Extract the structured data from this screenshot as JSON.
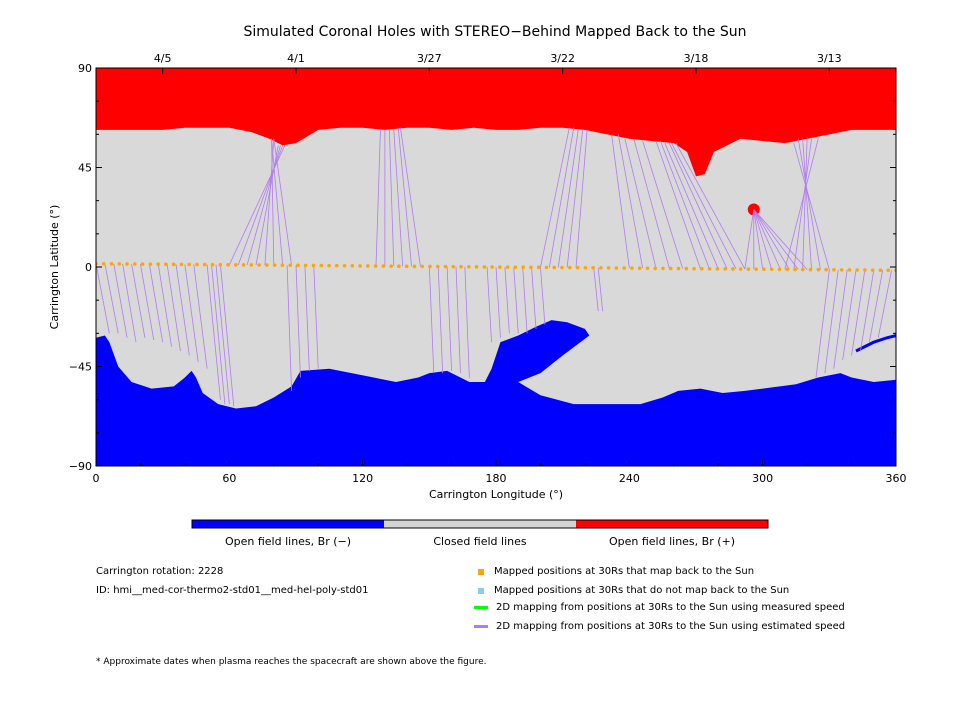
{
  "chart_data": {
    "type": "map",
    "title": "Simulated Coronal Holes with STEREO−Behind Mapped Back to the Sun",
    "xlabel": "Carrington Longitude (°)",
    "ylabel": "Carrington Latitude (°)",
    "xlim": [
      0,
      360
    ],
    "ylim": [
      -90,
      90
    ],
    "x_ticks": [
      0,
      60,
      120,
      180,
      240,
      300,
      360
    ],
    "y_ticks": [
      -90,
      -45,
      0,
      45,
      90
    ],
    "x_tick_labels": [
      "0",
      "60",
      "120",
      "180",
      "240",
      "300",
      "360"
    ],
    "y_tick_labels": [
      "−90",
      "−45",
      "0",
      "45",
      "90"
    ],
    "top_axis_dates": [
      {
        "label": "4/5",
        "lon": 30
      },
      {
        "label": "4/1",
        "lon": 90
      },
      {
        "label": "3/27",
        "lon": 150
      },
      {
        "label": "3/22",
        "lon": 210
      },
      {
        "label": "3/18",
        "lon": 270
      },
      {
        "label": "3/13",
        "lon": 330
      }
    ],
    "north_hole_boundary": [
      [
        0,
        62
      ],
      [
        10,
        62
      ],
      [
        20,
        62
      ],
      [
        30,
        62
      ],
      [
        40,
        63
      ],
      [
        50,
        63
      ],
      [
        60,
        63
      ],
      [
        70,
        61
      ],
      [
        78,
        58
      ],
      [
        84,
        55
      ],
      [
        90,
        56
      ],
      [
        100,
        62
      ],
      [
        110,
        63
      ],
      [
        120,
        63
      ],
      [
        130,
        62
      ],
      [
        140,
        63
      ],
      [
        150,
        63
      ],
      [
        160,
        62
      ],
      [
        170,
        63
      ],
      [
        180,
        62
      ],
      [
        190,
        62
      ],
      [
        200,
        63
      ],
      [
        210,
        63
      ],
      [
        220,
        62
      ],
      [
        230,
        60
      ],
      [
        240,
        58
      ],
      [
        250,
        57
      ],
      [
        260,
        56
      ],
      [
        266,
        52
      ],
      [
        270,
        41
      ],
      [
        274,
        42
      ],
      [
        278,
        52
      ],
      [
        290,
        58
      ],
      [
        300,
        57
      ],
      [
        310,
        56
      ],
      [
        320,
        58
      ],
      [
        330,
        60
      ],
      [
        340,
        62
      ],
      [
        350,
        62
      ],
      [
        360,
        62
      ]
    ],
    "north_small_hole": {
      "lon": 296,
      "lat": 26
    },
    "south_hole_boundary": [
      [
        0,
        -32
      ],
      [
        4,
        -31
      ],
      [
        6,
        -34
      ],
      [
        10,
        -45
      ],
      [
        16,
        -52
      ],
      [
        25,
        -55
      ],
      [
        35,
        -54
      ],
      [
        40,
        -50
      ],
      [
        43,
        -47
      ],
      [
        45,
        -50
      ],
      [
        48,
        -57
      ],
      [
        55,
        -62
      ],
      [
        63,
        -64
      ],
      [
        72,
        -63
      ],
      [
        80,
        -59
      ],
      [
        88,
        -54
      ],
      [
        92,
        -47
      ],
      [
        105,
        -46
      ],
      [
        115,
        -48
      ],
      [
        125,
        -50
      ],
      [
        135,
        -52
      ],
      [
        145,
        -50
      ],
      [
        150,
        -48
      ],
      [
        158,
        -47
      ],
      [
        168,
        -52
      ],
      [
        175,
        -52
      ],
      [
        178,
        -46
      ],
      [
        182,
        -34
      ],
      [
        190,
        -31
      ],
      [
        198,
        -27
      ],
      [
        205,
        -24
      ],
      [
        212,
        -25
      ],
      [
        220,
        -28
      ],
      [
        222,
        -31
      ],
      [
        210,
        -40
      ],
      [
        200,
        -48
      ],
      [
        190,
        -52
      ],
      [
        200,
        -58
      ],
      [
        215,
        -62
      ],
      [
        230,
        -62
      ],
      [
        245,
        -62
      ],
      [
        255,
        -59
      ],
      [
        262,
        -56
      ],
      [
        272,
        -55
      ],
      [
        282,
        -57
      ],
      [
        292,
        -56
      ],
      [
        300,
        -55
      ],
      [
        315,
        -53
      ],
      [
        325,
        -50
      ],
      [
        335,
        -48
      ],
      [
        340,
        -50
      ],
      [
        350,
        -52
      ],
      [
        360,
        -51
      ]
    ],
    "south_small_hole": [
      [
        342,
        -38
      ],
      [
        350,
        -34
      ],
      [
        356,
        -32
      ],
      [
        360,
        -31
      ]
    ],
    "mapped_positions": {
      "lon_start": 0,
      "lon_end": 360,
      "lat_start": 1.5,
      "lat_end": -1.5,
      "count": 104
    },
    "colorbar": {
      "labels": [
        "Open field lines, Br (−)",
        "Closed field lines",
        "Open field lines, Br (+)"
      ],
      "colors": [
        "#0000ff",
        "#d3d3d3",
        "#ff0000"
      ]
    },
    "colors": {
      "open_negative": "#0000ff",
      "closed": "#d9d9d9",
      "open_positive": "#ff0000",
      "mapped_back": "#ffa500",
      "not_mapped": "#87ceeb",
      "measured_speed": "#00ff00",
      "estimated_speed": "#b07cf0"
    }
  },
  "info": {
    "rotation": "Carrington rotation: 2228",
    "id": "ID: hmi__med-cor-thermo2-std01__med-hel-poly-std01"
  },
  "legend": {
    "mapped_back": "Mapped positions at 30Rs that map back to the Sun",
    "not_mapped": "Mapped positions at 30Rs that do not map back to the Sun",
    "measured_speed": "2D mapping from positions at 30Rs to the Sun using measured speed",
    "estimated_speed": "2D mapping from positions at 30Rs to the Sun using estimated speed"
  },
  "footnote": "* Approximate dates when plasma reaches the spacecraft are shown above the figure."
}
